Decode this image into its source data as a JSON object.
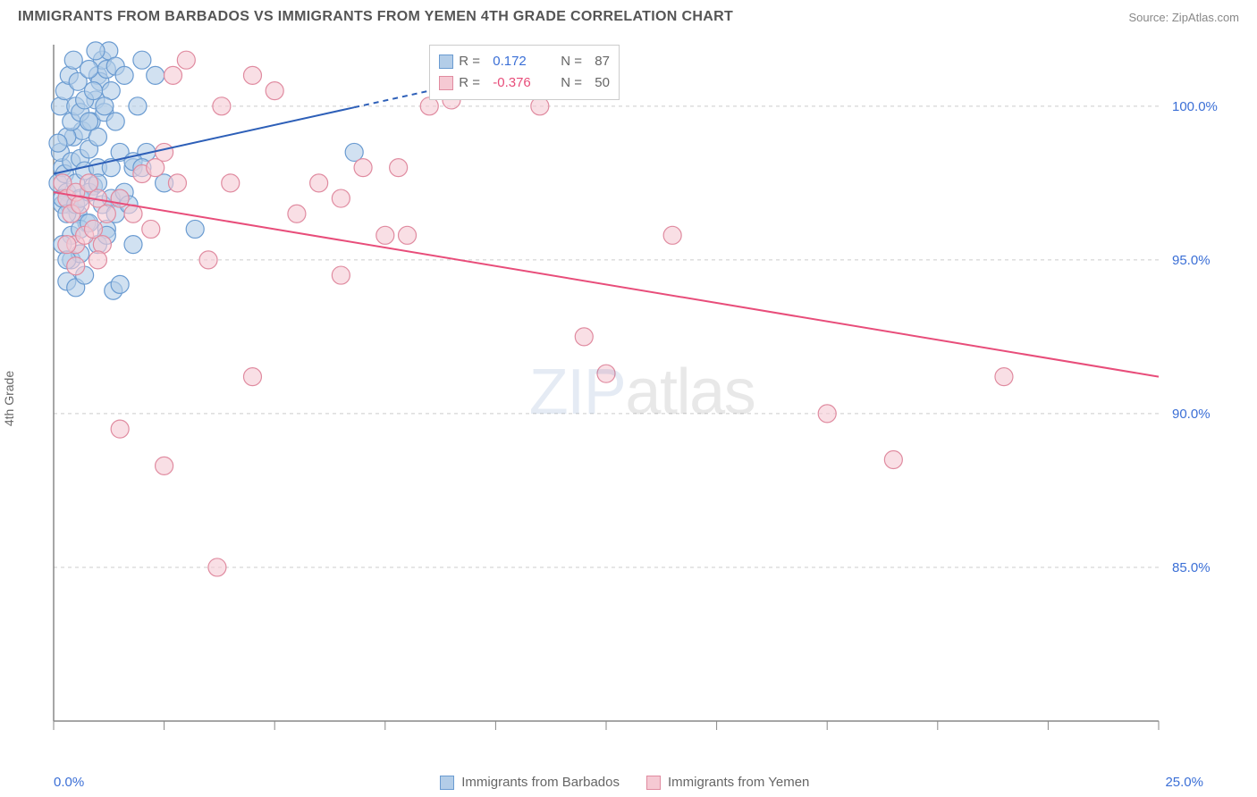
{
  "title": "IMMIGRANTS FROM BARBADOS VS IMMIGRANTS FROM YEMEN 4TH GRADE CORRELATION CHART",
  "source": "Source: ZipAtlas.com",
  "ylabel": "4th Grade",
  "watermark_zip": "ZIP",
  "watermark_atlas": "atlas",
  "chart": {
    "type": "scatter",
    "xlim": [
      0,
      25
    ],
    "ylim": [
      80,
      102
    ],
    "xtick_positions": [
      0,
      2.5,
      5,
      7.5,
      10,
      12.5,
      15,
      17.5,
      20,
      22.5,
      25
    ],
    "xtick_label_left": "0.0%",
    "xtick_label_right": "25.0%",
    "ytick_positions": [
      85,
      90,
      95,
      100
    ],
    "ytick_labels": [
      "85.0%",
      "90.0%",
      "95.0%",
      "100.0%"
    ],
    "grid_color": "#cccccc",
    "background_color": "#ffffff",
    "axis_color": "#888888",
    "marker_radius": 10,
    "marker_stroke_width": 1.2,
    "line_width": 2,
    "series": [
      {
        "name": "Immigrants from Barbados",
        "color_fill": "#b3cde8",
        "color_stroke": "#6a9bd1",
        "color_line": "#2d5fb8",
        "r_value": "0.172",
        "r_color": "#3b6fd6",
        "n_value": "87",
        "trend": {
          "x1": 0,
          "y1": 97.8,
          "x2": 8.5,
          "y2": 100.5,
          "dash_from_x": 6.8
        },
        "points": [
          [
            0.1,
            97.5
          ],
          [
            0.2,
            98.0
          ],
          [
            0.3,
            97.2
          ],
          [
            0.15,
            98.5
          ],
          [
            0.25,
            97.8
          ],
          [
            0.4,
            98.2
          ],
          [
            0.35,
            96.8
          ],
          [
            0.5,
            97.5
          ],
          [
            0.45,
            99.0
          ],
          [
            0.6,
            98.3
          ],
          [
            0.55,
            96.5
          ],
          [
            0.7,
            97.9
          ],
          [
            0.65,
            99.2
          ],
          [
            0.8,
            98.6
          ],
          [
            0.75,
            96.2
          ],
          [
            0.9,
            97.4
          ],
          [
            0.85,
            99.5
          ],
          [
            1.0,
            101.0
          ],
          [
            0.95,
            100.2
          ],
          [
            1.1,
            101.5
          ],
          [
            1.05,
            100.8
          ],
          [
            1.2,
            101.2
          ],
          [
            1.15,
            99.8
          ],
          [
            1.3,
            100.5
          ],
          [
            1.25,
            101.8
          ],
          [
            1.4,
            101.3
          ],
          [
            1.35,
            94.0
          ],
          [
            1.5,
            94.2
          ],
          [
            0.3,
            94.3
          ],
          [
            0.5,
            94.1
          ],
          [
            0.7,
            94.5
          ],
          [
            1.0,
            98.0
          ],
          [
            1.3,
            98.0
          ],
          [
            1.5,
            97.0
          ],
          [
            1.8,
            98.0
          ],
          [
            2.0,
            101.5
          ],
          [
            2.1,
            98.5
          ],
          [
            2.3,
            101.0
          ],
          [
            2.5,
            97.5
          ],
          [
            1.8,
            95.5
          ],
          [
            0.4,
            95.0
          ],
          [
            0.6,
            95.2
          ],
          [
            1.2,
            96.0
          ],
          [
            1.6,
            101.0
          ],
          [
            1.9,
            100.0
          ],
          [
            3.2,
            96.0
          ],
          [
            6.8,
            98.5
          ],
          [
            0.2,
            96.8
          ],
          [
            0.3,
            99.0
          ],
          [
            0.15,
            100.0
          ],
          [
            0.25,
            100.5
          ],
          [
            0.4,
            99.5
          ],
          [
            0.5,
            100.0
          ],
          [
            0.6,
            99.8
          ],
          [
            0.7,
            100.2
          ],
          [
            0.8,
            99.5
          ],
          [
            0.9,
            100.5
          ],
          [
            1.0,
            99.0
          ],
          [
            0.35,
            101.0
          ],
          [
            0.45,
            101.5
          ],
          [
            0.55,
            100.8
          ],
          [
            0.8,
            101.2
          ],
          [
            0.95,
            101.8
          ],
          [
            1.15,
            100.0
          ],
          [
            1.4,
            99.5
          ],
          [
            0.1,
            98.8
          ],
          [
            0.2,
            97.0
          ],
          [
            0.3,
            96.5
          ],
          [
            0.5,
            96.8
          ],
          [
            0.6,
            97.0
          ],
          [
            0.8,
            97.2
          ],
          [
            1.0,
            97.5
          ],
          [
            1.1,
            96.8
          ],
          [
            1.3,
            97.0
          ],
          [
            1.4,
            96.5
          ],
          [
            1.6,
            97.2
          ],
          [
            1.7,
            96.8
          ],
          [
            1.0,
            95.5
          ],
          [
            1.2,
            95.8
          ],
          [
            0.4,
            95.8
          ],
          [
            0.6,
            96.0
          ],
          [
            0.8,
            96.2
          ],
          [
            0.2,
            95.5
          ],
          [
            0.3,
            95.0
          ],
          [
            1.5,
            98.5
          ],
          [
            1.8,
            98.2
          ],
          [
            2.0,
            98.0
          ]
        ]
      },
      {
        "name": "Immigrants from Yemen",
        "color_fill": "#f5c9d3",
        "color_stroke": "#e08ba0",
        "color_line": "#e84d7a",
        "r_value": "-0.376",
        "r_color": "#e84d7a",
        "n_value": "50",
        "trend": {
          "x1": 0,
          "y1": 97.2,
          "x2": 25,
          "y2": 91.2
        },
        "points": [
          [
            0.2,
            97.5
          ],
          [
            0.3,
            97.0
          ],
          [
            0.4,
            96.5
          ],
          [
            0.5,
            97.2
          ],
          [
            0.6,
            96.8
          ],
          [
            0.8,
            97.5
          ],
          [
            1.0,
            97.0
          ],
          [
            1.2,
            96.5
          ],
          [
            0.5,
            95.5
          ],
          [
            0.7,
            95.8
          ],
          [
            0.9,
            96.0
          ],
          [
            1.1,
            95.5
          ],
          [
            1.5,
            97.0
          ],
          [
            1.8,
            96.5
          ],
          [
            2.0,
            97.8
          ],
          [
            2.3,
            98.0
          ],
          [
            2.7,
            101.0
          ],
          [
            2.8,
            97.5
          ],
          [
            3.0,
            101.5
          ],
          [
            3.5,
            95.0
          ],
          [
            3.8,
            100.0
          ],
          [
            4.0,
            97.5
          ],
          [
            4.5,
            101.0
          ],
          [
            5.0,
            100.5
          ],
          [
            5.5,
            96.5
          ],
          [
            6.0,
            97.5
          ],
          [
            6.5,
            94.5
          ],
          [
            7.0,
            98.0
          ],
          [
            7.5,
            95.8
          ],
          [
            7.8,
            98.0
          ],
          [
            8.0,
            95.8
          ],
          [
            8.5,
            100.0
          ],
          [
            9.0,
            100.2
          ],
          [
            11.0,
            100.0
          ],
          [
            12.0,
            92.5
          ],
          [
            12.5,
            91.3
          ],
          [
            14.0,
            95.8
          ],
          [
            17.5,
            90.0
          ],
          [
            19.0,
            88.5
          ],
          [
            21.5,
            91.2
          ],
          [
            2.5,
            98.5
          ],
          [
            2.2,
            96.0
          ],
          [
            1.5,
            89.5
          ],
          [
            1.0,
            95.0
          ],
          [
            0.3,
            95.5
          ],
          [
            0.5,
            94.8
          ],
          [
            2.5,
            88.3
          ],
          [
            3.7,
            85.0
          ],
          [
            4.5,
            91.2
          ],
          [
            6.5,
            97.0
          ]
        ]
      }
    ]
  },
  "legend_bottom": {
    "barbados_label": "Immigrants from Barbados",
    "yemen_label": "Immigrants from Yemen"
  },
  "stats_box": {
    "r_label": "R =",
    "n_label": "N ="
  }
}
